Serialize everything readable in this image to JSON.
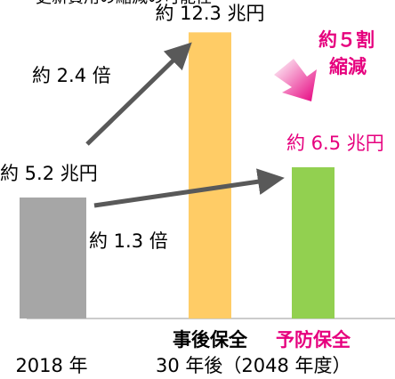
{
  "chart_data": {
    "type": "bar",
    "title": "更新費用の縮減の可能性",
    "categories": [
      "2018 年",
      "事後保全",
      "予防保全"
    ],
    "values": [
      5.2,
      12.3,
      6.5
    ],
    "value_labels": [
      "約 5.2 兆円",
      "約 12.3 兆円",
      "約 6.5 兆円"
    ],
    "colors": [
      "#a6a6a6",
      "#ffcc66",
      "#92d050"
    ],
    "group_label": "30 年後（2048 年度）",
    "annotations": [
      "約 2.4 倍",
      "約 1.3 倍",
      "約５割",
      "縮減"
    ]
  }
}
